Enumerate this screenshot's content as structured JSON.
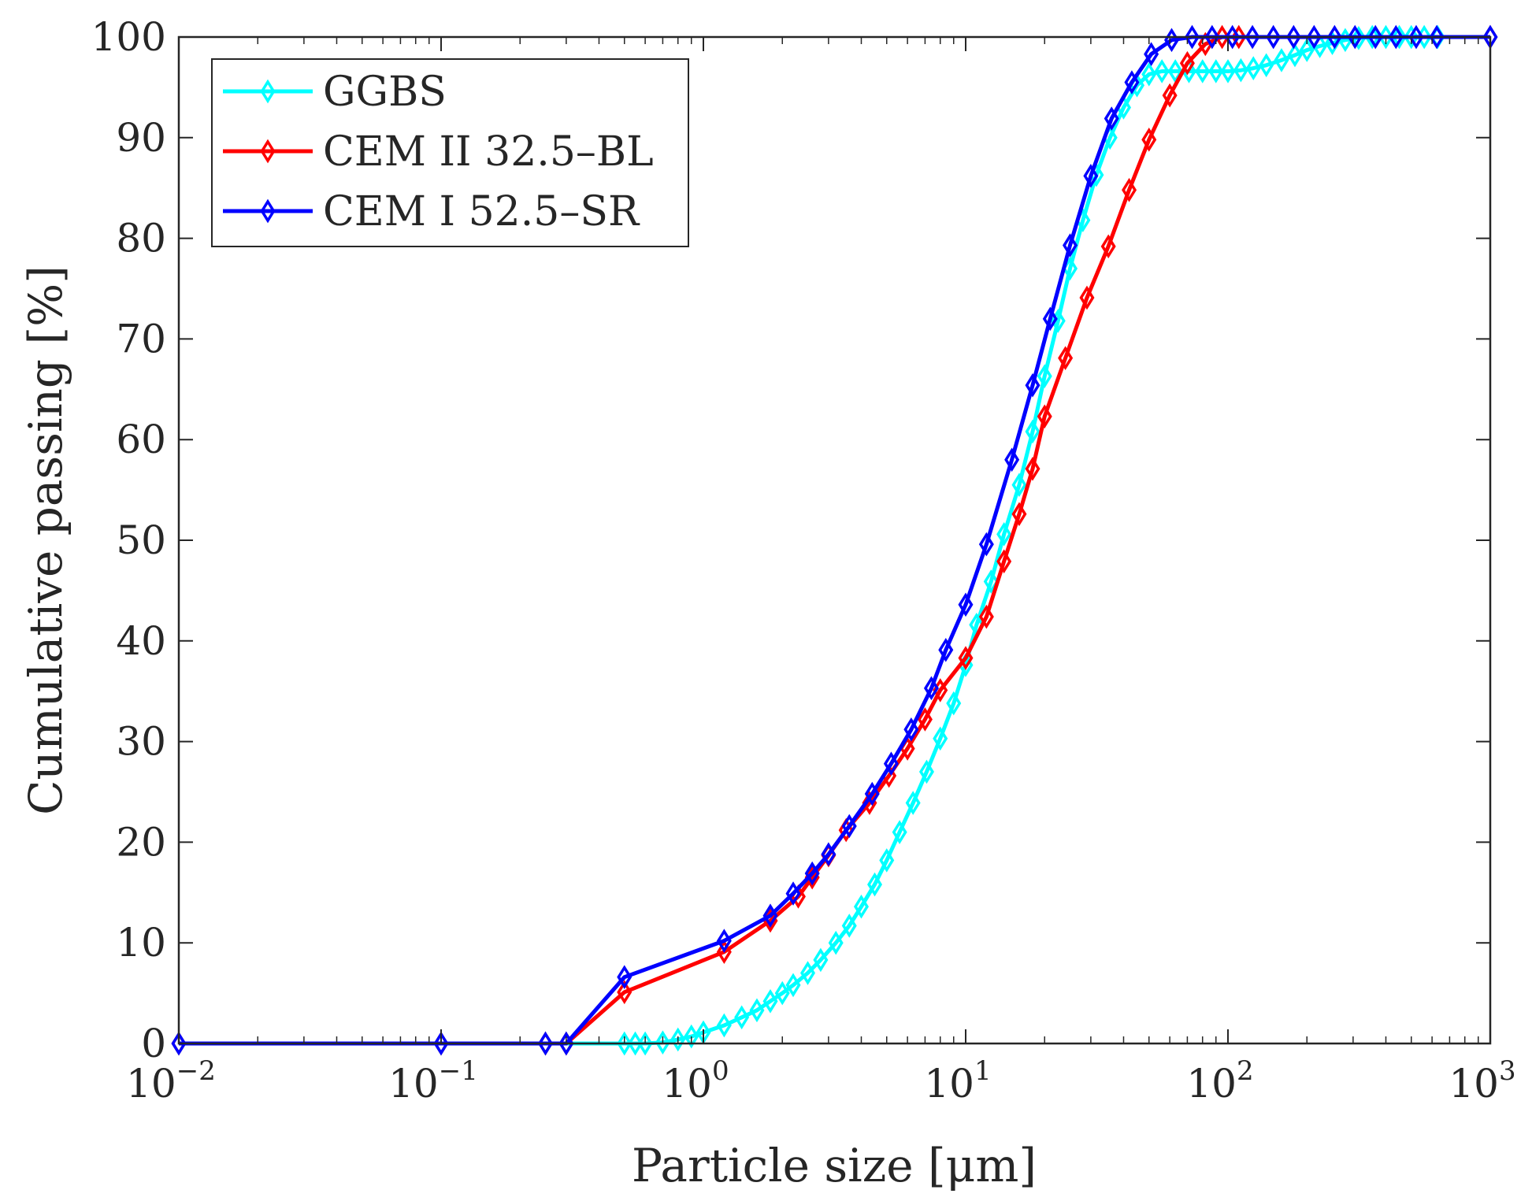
{
  "chart_data": {
    "type": "line",
    "xscale": "log",
    "xlim": [
      0.01,
      1000
    ],
    "ylim": [
      0,
      100
    ],
    "xlabel": "Particle size [μm]",
    "ylabel": "Cumulative passing [%]",
    "x_tick_values": [
      0.01,
      0.1,
      1,
      10,
      100,
      1000
    ],
    "x_tick_labels": [
      {
        "base": "10",
        "exp": "−2"
      },
      {
        "base": "10",
        "exp": "−1"
      },
      {
        "base": "10",
        "exp": "0"
      },
      {
        "base": "10",
        "exp": "1"
      },
      {
        "base": "10",
        "exp": "2"
      },
      {
        "base": "10",
        "exp": "3"
      }
    ],
    "y_tick_values": [
      0,
      10,
      20,
      30,
      40,
      50,
      60,
      70,
      80,
      90,
      100
    ],
    "y_tick_labels": [
      "0",
      "10",
      "20",
      "30",
      "40",
      "50",
      "60",
      "70",
      "80",
      "90",
      "100"
    ],
    "legend_position": "top-left",
    "series": [
      {
        "name": "GGBS",
        "color": "#00ffff",
        "marker": "diamond",
        "points": [
          [
            0.01,
            0
          ],
          [
            0.1,
            0
          ],
          [
            0.25,
            0
          ],
          [
            0.3,
            0
          ],
          [
            0.5,
            0
          ],
          [
            0.55,
            0
          ],
          [
            0.6,
            0
          ],
          [
            0.7,
            0.1
          ],
          [
            0.8,
            0.4
          ],
          [
            0.9,
            0.7
          ],
          [
            1.0,
            1.1
          ],
          [
            1.2,
            1.8
          ],
          [
            1.4,
            2.6
          ],
          [
            1.6,
            3.3
          ],
          [
            1.8,
            4.2
          ],
          [
            2.0,
            5.0
          ],
          [
            2.2,
            5.8
          ],
          [
            2.5,
            7.0
          ],
          [
            2.8,
            8.3
          ],
          [
            3.2,
            10.0
          ],
          [
            3.6,
            11.7
          ],
          [
            4.0,
            13.6
          ],
          [
            4.5,
            15.8
          ],
          [
            5.0,
            18.2
          ],
          [
            5.6,
            21.0
          ],
          [
            6.3,
            23.9
          ],
          [
            7.1,
            27.0
          ],
          [
            8.0,
            30.3
          ],
          [
            9.0,
            33.8
          ],
          [
            10,
            37.6
          ],
          [
            11,
            41.6
          ],
          [
            12.5,
            45.9
          ],
          [
            14,
            50.6
          ],
          [
            16,
            55.5
          ],
          [
            18,
            60.8
          ],
          [
            20,
            66.3
          ],
          [
            22.5,
            71.8
          ],
          [
            25,
            77.0
          ],
          [
            28,
            81.8
          ],
          [
            31.5,
            86.3
          ],
          [
            35.5,
            90.0
          ],
          [
            40,
            93.0
          ],
          [
            45,
            95.2
          ],
          [
            50,
            96.3
          ],
          [
            56,
            96.6
          ],
          [
            63,
            96.6
          ],
          [
            71,
            96.6
          ],
          [
            80,
            96.6
          ],
          [
            90,
            96.6
          ],
          [
            100,
            96.6
          ],
          [
            112,
            96.7
          ],
          [
            125,
            96.9
          ],
          [
            140,
            97.2
          ],
          [
            160,
            97.7
          ],
          [
            180,
            98.2
          ],
          [
            200,
            98.7
          ],
          [
            224,
            99.1
          ],
          [
            250,
            99.4
          ],
          [
            280,
            99.7
          ],
          [
            315,
            99.9
          ],
          [
            355,
            100
          ],
          [
            400,
            100
          ],
          [
            450,
            100
          ],
          [
            500,
            100
          ],
          [
            560,
            100
          ],
          [
            630,
            100
          ],
          [
            1000,
            100
          ]
        ]
      },
      {
        "name": "CEM II 32.5–BL",
        "color": "#ff0000",
        "marker": "diamond",
        "points": [
          [
            0.01,
            0
          ],
          [
            0.1,
            0
          ],
          [
            0.25,
            0
          ],
          [
            0.3,
            0
          ],
          [
            0.5,
            5.1
          ],
          [
            1.2,
            9.1
          ],
          [
            1.8,
            12.2
          ],
          [
            2.3,
            14.6
          ],
          [
            2.6,
            16.5
          ],
          [
            3.0,
            18.7
          ],
          [
            3.5,
            21.2
          ],
          [
            4.3,
            23.9
          ],
          [
            5.1,
            26.6
          ],
          [
            6.0,
            29.3
          ],
          [
            7.0,
            32.2
          ],
          [
            8.0,
            35.1
          ],
          [
            10,
            38.3
          ],
          [
            12,
            42.4
          ],
          [
            14,
            47.9
          ],
          [
            16,
            52.6
          ],
          [
            18,
            57.1
          ],
          [
            20,
            62.3
          ],
          [
            24,
            68.1
          ],
          [
            29,
            74.1
          ],
          [
            35,
            79.2
          ],
          [
            42,
            84.8
          ],
          [
            50,
            89.8
          ],
          [
            60,
            94.2
          ],
          [
            70,
            97.4
          ],
          [
            82,
            99.3
          ],
          [
            95,
            100
          ],
          [
            110,
            100
          ],
          [
            1000,
            100
          ]
        ]
      },
      {
        "name": "CEM I 52.5–SR",
        "color": "#0000ff",
        "marker": "diamond",
        "points": [
          [
            0.01,
            0
          ],
          [
            0.1,
            0
          ],
          [
            0.25,
            0
          ],
          [
            0.3,
            0
          ],
          [
            0.5,
            6.6
          ],
          [
            1.2,
            10.2
          ],
          [
            1.8,
            12.7
          ],
          [
            2.2,
            14.9
          ],
          [
            2.6,
            16.9
          ],
          [
            3.0,
            18.8
          ],
          [
            3.6,
            21.6
          ],
          [
            4.4,
            24.8
          ],
          [
            5.2,
            27.8
          ],
          [
            6.2,
            31.2
          ],
          [
            7.4,
            35.3
          ],
          [
            8.4,
            39.1
          ],
          [
            10,
            43.6
          ],
          [
            12,
            49.6
          ],
          [
            15,
            58.0
          ],
          [
            18,
            65.4
          ],
          [
            21,
            72.0
          ],
          [
            25,
            79.3
          ],
          [
            30,
            86.2
          ],
          [
            36,
            91.9
          ],
          [
            43,
            95.5
          ],
          [
            51,
            98.3
          ],
          [
            61,
            99.7
          ],
          [
            73,
            100
          ],
          [
            87,
            100
          ],
          [
            104,
            100
          ],
          [
            124,
            100
          ],
          [
            149,
            100
          ],
          [
            178,
            100
          ],
          [
            213,
            100
          ],
          [
            255,
            100
          ],
          [
            305,
            100
          ],
          [
            365,
            100
          ],
          [
            437,
            100
          ],
          [
            522,
            100
          ],
          [
            625,
            100
          ],
          [
            1000,
            100
          ]
        ]
      }
    ]
  }
}
